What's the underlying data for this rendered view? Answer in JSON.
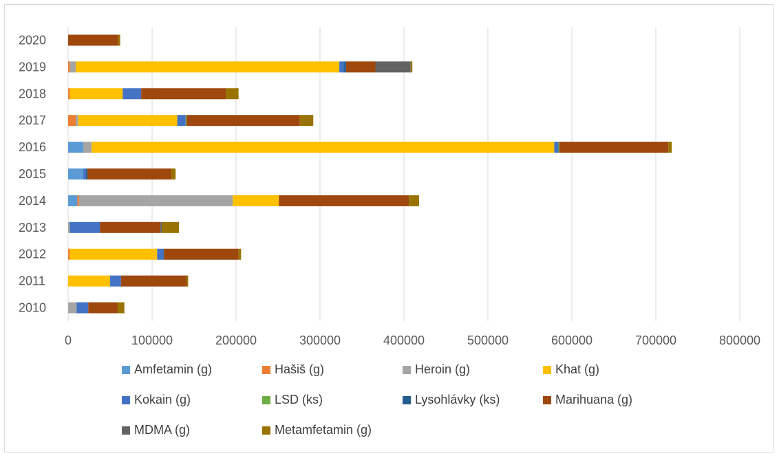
{
  "chart_data": {
    "type": "bar",
    "orientation": "horizontal",
    "stacked": true,
    "categories": [
      "2020",
      "2019",
      "2018",
      "2017",
      "2016",
      "2015",
      "2014",
      "2013",
      "2012",
      "2011",
      "2010"
    ],
    "xlim": [
      0,
      800000
    ],
    "xticks": [
      "0",
      "100000",
      "200000",
      "300000",
      "400000",
      "500000",
      "600000",
      "700000",
      "800000"
    ],
    "grid": "vertical",
    "legend_position": "bottom",
    "series": [
      {
        "name": "Amfetamin (g)",
        "color": "#5b9bd5",
        "values": [
          0,
          0,
          0,
          0,
          18000,
          18000,
          11000,
          0,
          0,
          0,
          0
        ]
      },
      {
        "name": "Hašiš (g)",
        "color": "#ed7d31",
        "values": [
          0,
          2000,
          2000,
          9000,
          0,
          0,
          2000,
          0,
          2000,
          0,
          0
        ]
      },
      {
        "name": "Heroin (g)",
        "color": "#a5a5a5",
        "values": [
          0,
          7000,
          0,
          3000,
          10000,
          0,
          183000,
          2000,
          0,
          0,
          10000
        ]
      },
      {
        "name": "Khat (g)",
        "color": "#ffc000",
        "values": [
          0,
          314000,
          63000,
          118000,
          551000,
          0,
          55000,
          0,
          104000,
          50000,
          0
        ]
      },
      {
        "name": "Kokain (g)",
        "color": "#4472c4",
        "values": [
          0,
          5000,
          22000,
          10000,
          5000,
          3000,
          0,
          36000,
          8000,
          13000,
          14000
        ]
      },
      {
        "name": "LSD (ks)",
        "color": "#70ad47",
        "values": [
          0,
          0,
          0,
          1000,
          1000,
          0,
          0,
          0,
          0,
          0,
          0
        ]
      },
      {
        "name": "Lysohlávky (ks)",
        "color": "#255e91",
        "values": [
          0,
          3000,
          0,
          0,
          0,
          2000,
          0,
          0,
          0,
          0,
          0
        ]
      },
      {
        "name": "Marihuana (g)",
        "color": "#9e480e",
        "values": [
          60000,
          35000,
          101000,
          135000,
          130000,
          100000,
          155000,
          72000,
          89000,
          78000,
          35000
        ]
      },
      {
        "name": "MDMA (g)",
        "color": "#636363",
        "values": [
          0,
          42000,
          0,
          0,
          0,
          0,
          0,
          2000,
          0,
          0,
          0
        ]
      },
      {
        "name": "Metamfetamin (g)",
        "color": "#997300",
        "values": [
          2000,
          2000,
          15000,
          16000,
          4000,
          5000,
          12000,
          20000,
          3000,
          2000,
          8000
        ]
      }
    ]
  }
}
